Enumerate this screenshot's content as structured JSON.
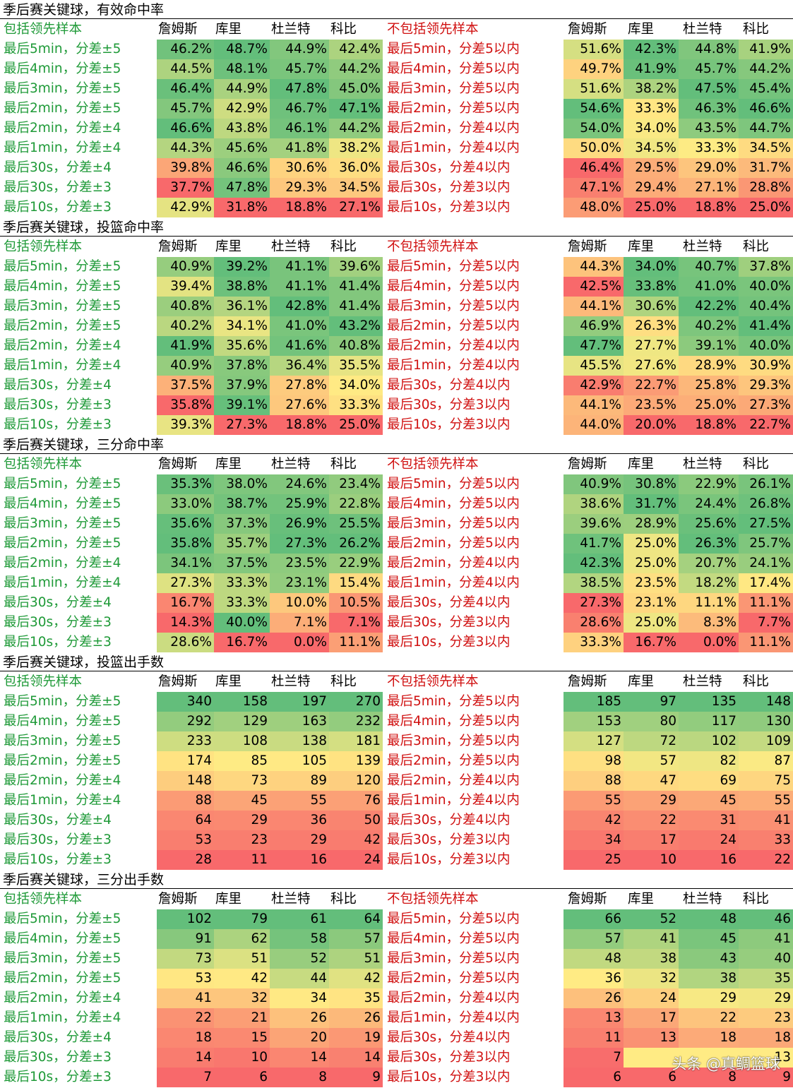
{
  "headers": {
    "include_label": "包括领先样本",
    "exclude_label": "不包括领先样本",
    "players": [
      "詹姆斯",
      "库里",
      "杜兰特",
      "科比"
    ]
  },
  "colors": {
    "include_label": "#1f9a38",
    "exclude_label": "#d01010",
    "scale_low": "#f8696b",
    "scale_mid": "#ffeb84",
    "scale_high": "#63be7b"
  },
  "row_labels_include": [
    "最后5min，分差±5",
    "最后4min，分差±5",
    "最后3min，分差±5",
    "最后2min，分差±5",
    "最后2min，分差±4",
    "最后1min，分差±4",
    "最后30s，分差±4",
    "最后30s，分差±3",
    "最后10s，分差±3"
  ],
  "row_labels_exclude": [
    "最后5min，分差5以内",
    "最后4min，分差5以内",
    "最后3min，分差5以内",
    "最后2min，分差5以内",
    "最后2min，分差4以内",
    "最后1min，分差4以内",
    "最后30s，分差4以内",
    "最后30s，分差3以内",
    "最后10s，分差3以内"
  ],
  "sections": [
    {
      "title": "季后赛关键球，有效命中率",
      "include": [
        [
          "46.2%",
          "48.7%",
          "44.9%",
          "42.4%"
        ],
        [
          "44.5%",
          "48.1%",
          "45.7%",
          "44.2%"
        ],
        [
          "46.4%",
          "44.9%",
          "47.8%",
          "45.0%"
        ],
        [
          "45.7%",
          "42.9%",
          "46.7%",
          "47.1%"
        ],
        [
          "46.6%",
          "43.8%",
          "46.1%",
          "44.2%"
        ],
        [
          "44.3%",
          "45.6%",
          "41.8%",
          "38.2%"
        ],
        [
          "39.8%",
          "46.6%",
          "30.6%",
          "36.0%"
        ],
        [
          "37.7%",
          "47.8%",
          "29.3%",
          "34.5%"
        ],
        [
          "42.9%",
          "31.8%",
          "18.8%",
          "27.1%"
        ]
      ],
      "exclude": [
        [
          "51.6%",
          "42.3%",
          "44.8%",
          "41.9%"
        ],
        [
          "49.7%",
          "41.9%",
          "45.7%",
          "44.2%"
        ],
        [
          "51.6%",
          "38.2%",
          "47.5%",
          "45.4%"
        ],
        [
          "54.6%",
          "33.3%",
          "46.3%",
          "46.6%"
        ],
        [
          "54.0%",
          "34.0%",
          "43.5%",
          "44.7%"
        ],
        [
          "50.0%",
          "34.5%",
          "33.3%",
          "34.5%"
        ],
        [
          "46.4%",
          "29.5%",
          "29.0%",
          "31.7%"
        ],
        [
          "47.1%",
          "29.4%",
          "27.1%",
          "28.8%"
        ],
        [
          "48.0%",
          "25.0%",
          "18.8%",
          "25.0%"
        ]
      ]
    },
    {
      "title": "季后赛关键球，投篮命中率",
      "include": [
        [
          "40.9%",
          "39.2%",
          "41.1%",
          "39.6%"
        ],
        [
          "39.4%",
          "38.8%",
          "41.1%",
          "41.4%"
        ],
        [
          "40.8%",
          "36.1%",
          "42.8%",
          "41.4%"
        ],
        [
          "40.2%",
          "34.1%",
          "41.0%",
          "43.2%"
        ],
        [
          "41.9%",
          "35.6%",
          "41.6%",
          "40.8%"
        ],
        [
          "40.9%",
          "37.8%",
          "36.4%",
          "35.5%"
        ],
        [
          "37.5%",
          "37.9%",
          "27.8%",
          "34.0%"
        ],
        [
          "35.8%",
          "39.1%",
          "27.6%",
          "33.3%"
        ],
        [
          "39.3%",
          "27.3%",
          "18.8%",
          "25.0%"
        ]
      ],
      "exclude": [
        [
          "44.3%",
          "34.0%",
          "40.7%",
          "37.8%"
        ],
        [
          "42.5%",
          "33.8%",
          "41.0%",
          "40.0%"
        ],
        [
          "44.1%",
          "30.6%",
          "42.2%",
          "40.4%"
        ],
        [
          "46.9%",
          "26.3%",
          "40.2%",
          "41.4%"
        ],
        [
          "47.7%",
          "27.7%",
          "39.1%",
          "40.0%"
        ],
        [
          "45.5%",
          "27.6%",
          "28.9%",
          "30.9%"
        ],
        [
          "42.9%",
          "22.7%",
          "25.8%",
          "29.3%"
        ],
        [
          "44.1%",
          "23.5%",
          "25.0%",
          "27.3%"
        ],
        [
          "44.0%",
          "20.0%",
          "18.8%",
          "22.7%"
        ]
      ]
    },
    {
      "title": "季后赛关键球，三分命中率",
      "include": [
        [
          "35.3%",
          "38.0%",
          "24.6%",
          "23.4%"
        ],
        [
          "33.0%",
          "38.7%",
          "25.9%",
          "22.8%"
        ],
        [
          "35.6%",
          "37.3%",
          "26.9%",
          "25.5%"
        ],
        [
          "35.8%",
          "35.7%",
          "27.3%",
          "26.2%"
        ],
        [
          "34.1%",
          "37.5%",
          "23.5%",
          "22.9%"
        ],
        [
          "27.3%",
          "33.3%",
          "23.1%",
          "15.4%"
        ],
        [
          "16.7%",
          "33.3%",
          "10.0%",
          "10.5%"
        ],
        [
          "14.3%",
          "40.0%",
          "7.1%",
          "7.1%"
        ],
        [
          "28.6%",
          "16.7%",
          "0.0%",
          "11.1%"
        ]
      ],
      "exclude": [
        [
          "40.9%",
          "30.8%",
          "22.9%",
          "26.1%"
        ],
        [
          "38.6%",
          "31.7%",
          "24.4%",
          "26.8%"
        ],
        [
          "39.6%",
          "28.9%",
          "25.6%",
          "27.5%"
        ],
        [
          "41.7%",
          "25.0%",
          "26.3%",
          "25.7%"
        ],
        [
          "42.3%",
          "25.0%",
          "20.7%",
          "24.1%"
        ],
        [
          "38.5%",
          "23.5%",
          "18.2%",
          "17.4%"
        ],
        [
          "27.3%",
          "23.1%",
          "11.1%",
          "11.1%"
        ],
        [
          "28.6%",
          "25.0%",
          "8.3%",
          "7.7%"
        ],
        [
          "33.3%",
          "16.7%",
          "0.0%",
          "11.1%"
        ]
      ]
    },
    {
      "title": "季后赛关键球，投篮出手数",
      "include": [
        [
          "340",
          "158",
          "197",
          "270"
        ],
        [
          "292",
          "129",
          "163",
          "232"
        ],
        [
          "233",
          "108",
          "138",
          "181"
        ],
        [
          "174",
          "85",
          "105",
          "139"
        ],
        [
          "148",
          "73",
          "89",
          "120"
        ],
        [
          "88",
          "45",
          "55",
          "76"
        ],
        [
          "64",
          "29",
          "36",
          "50"
        ],
        [
          "53",
          "23",
          "29",
          "42"
        ],
        [
          "28",
          "11",
          "16",
          "24"
        ]
      ],
      "exclude": [
        [
          "185",
          "97",
          "135",
          "148"
        ],
        [
          "153",
          "80",
          "117",
          "130"
        ],
        [
          "127",
          "72",
          "102",
          "109"
        ],
        [
          "98",
          "57",
          "82",
          "87"
        ],
        [
          "88",
          "47",
          "69",
          "75"
        ],
        [
          "55",
          "29",
          "45",
          "55"
        ],
        [
          "42",
          "22",
          "31",
          "41"
        ],
        [
          "34",
          "17",
          "24",
          "33"
        ],
        [
          "25",
          "10",
          "16",
          "22"
        ]
      ]
    },
    {
      "title": "季后赛关键球，三分出手数",
      "include": [
        [
          "102",
          "79",
          "61",
          "64"
        ],
        [
          "91",
          "62",
          "58",
          "57"
        ],
        [
          "73",
          "51",
          "52",
          "51"
        ],
        [
          "53",
          "42",
          "44",
          "42"
        ],
        [
          "41",
          "32",
          "34",
          "35"
        ],
        [
          "22",
          "21",
          "26",
          "26"
        ],
        [
          "18",
          "15",
          "20",
          "19"
        ],
        [
          "14",
          "10",
          "14",
          "14"
        ],
        [
          "7",
          "6",
          "8",
          "9"
        ]
      ],
      "exclude": [
        [
          "66",
          "52",
          "48",
          "46"
        ],
        [
          "57",
          "41",
          "45",
          "41"
        ],
        [
          "48",
          "38",
          "43",
          "40"
        ],
        [
          "36",
          "32",
          "38",
          "35"
        ],
        [
          "26",
          "24",
          "29",
          "29"
        ],
        [
          "13",
          "17",
          "22",
          "23"
        ],
        [
          "11",
          "13",
          "18",
          "18"
        ],
        [
          "7",
          "",
          "",
          ""
        ],
        [
          "6",
          "6",
          "8",
          "9"
        ]
      ]
    }
  ],
  "watermark": "头条 @真鲷篮球",
  "watermark_partial_values": [
    "13"
  ]
}
